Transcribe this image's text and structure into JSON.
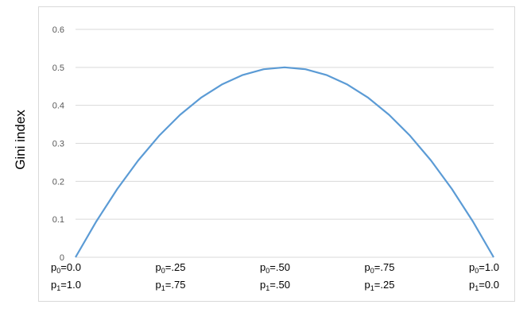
{
  "chart_data": {
    "type": "line",
    "title": "",
    "xlabel": "",
    "ylabel": "Gini index",
    "ylim": [
      0,
      0.6
    ],
    "yticks": [
      "0",
      "0.1",
      "0.2",
      "0.3",
      "0.4",
      "0.5",
      "0.6"
    ],
    "xlim": [
      0,
      1
    ],
    "grid": true,
    "line_color": "#5b9bd5",
    "x_tick_labels": [
      {
        "p0": "0.0",
        "p1": "1.0"
      },
      {
        "p0": ".25",
        "p1": ".75"
      },
      {
        "p0": ".50",
        "p1": ".50"
      },
      {
        "p0": ".75",
        "p1": ".25"
      },
      {
        "p0": "1.0",
        "p1": "0.0"
      }
    ],
    "series": [
      {
        "x": [
          0,
          0.05,
          0.1,
          0.15,
          0.2,
          0.25,
          0.3,
          0.35,
          0.4,
          0.45,
          0.5,
          0.55,
          0.6,
          0.65,
          0.7,
          0.75,
          0.8,
          0.85,
          0.9,
          0.95,
          1.0
        ],
        "values": [
          0,
          0.095,
          0.18,
          0.255,
          0.32,
          0.375,
          0.42,
          0.455,
          0.48,
          0.495,
          0.5,
          0.495,
          0.48,
          0.455,
          0.42,
          0.375,
          0.32,
          0.255,
          0.18,
          0.095,
          0
        ]
      }
    ]
  }
}
